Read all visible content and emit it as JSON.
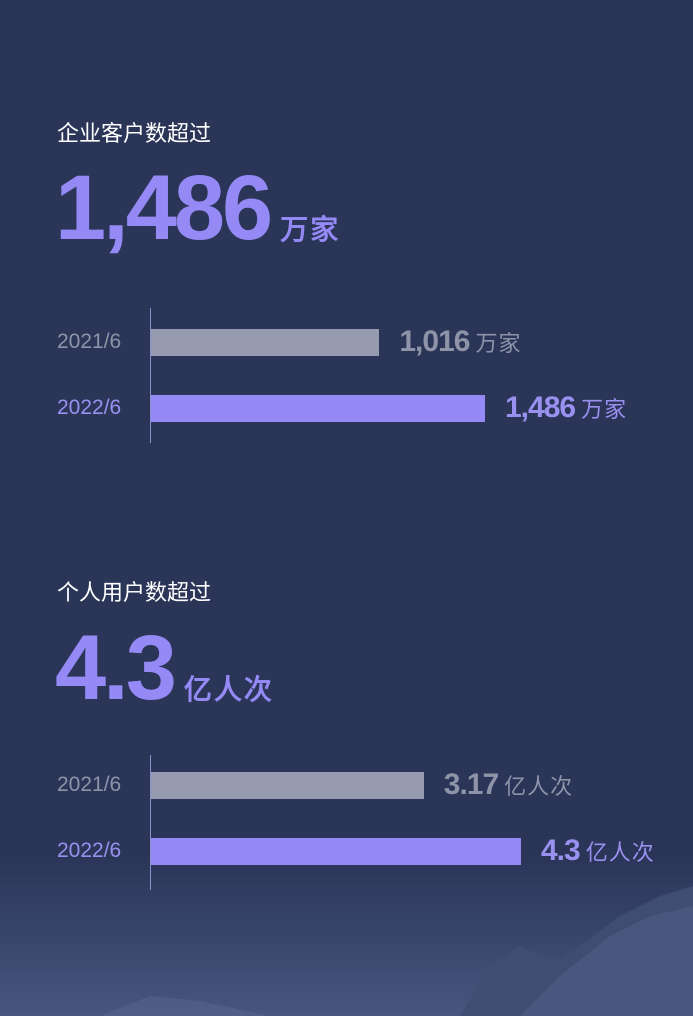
{
  "colors": {
    "background": "#2a3558",
    "gray": "#969bb0",
    "gray_text": "#8e93a8",
    "purple": "#9489f5"
  },
  "chart_data": [
    {
      "type": "bar",
      "orientation": "horizontal",
      "title": "企业客户数超过",
      "headline": "1,486",
      "headline_unit": "万家",
      "categories": [
        "2021/6",
        "2022/6"
      ],
      "values": [
        1016,
        1486
      ],
      "value_labels": [
        "1,016",
        "1,486"
      ],
      "unit": "万家"
    },
    {
      "type": "bar",
      "orientation": "horizontal",
      "title": "个人用户数超过",
      "headline": "4.3",
      "headline_unit": "亿人次",
      "categories": [
        "2021/6",
        "2022/6"
      ],
      "values": [
        3.17,
        4.3
      ],
      "value_labels": [
        "3.17",
        "4.3"
      ],
      "unit": "亿人次"
    }
  ]
}
